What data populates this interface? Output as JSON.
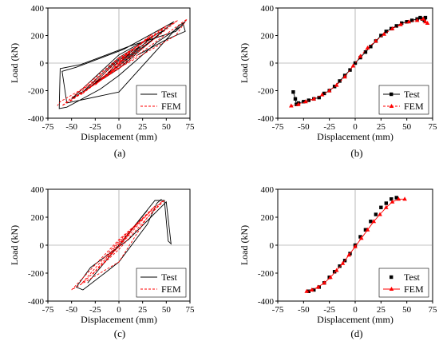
{
  "colors": {
    "test": "#000000",
    "fem": "#ff0000",
    "axis": "#000000"
  },
  "chart_data": [
    {
      "id": "a",
      "type": "line",
      "panel_label": "(a)",
      "xlabel": "Displacement (mm)",
      "ylabel": "Load (kN)",
      "xlim": [
        -75,
        75
      ],
      "ylim": [
        -400,
        400
      ],
      "xticks": [
        -75,
        -50,
        -25,
        0,
        25,
        50,
        75
      ],
      "yticks": [
        -400,
        -200,
        0,
        200,
        400
      ],
      "legend": "bottom-right",
      "series": [
        {
          "name": "Test",
          "style": "solid",
          "marker": "none",
          "x": [
            0,
            12,
            0,
            -12,
            0,
            22,
            0,
            -25,
            0,
            35,
            0,
            -38,
            0,
            48,
            0,
            -50,
            0,
            58,
            5,
            -45,
            -60,
            -55,
            0,
            63,
            70,
            60,
            10,
            -40,
            -62,
            -63,
            -55,
            -20,
            0,
            40,
            68,
            70,
            50,
            20
          ],
          "y": [
            0,
            70,
            20,
            -80,
            -10,
            120,
            30,
            -140,
            -20,
            190,
            40,
            -210,
            -20,
            240,
            60,
            -260,
            -40,
            300,
            100,
            -30,
            -60,
            -290,
            -210,
            270,
            300,
            230,
            120,
            -10,
            -40,
            -330,
            -320,
            -190,
            -90,
            150,
            280,
            230,
            170,
            60
          ]
        },
        {
          "name": "FEM",
          "style": "dashed",
          "marker": "none",
          "x": [
            0,
            12,
            0,
            -12,
            0,
            22,
            0,
            -25,
            0,
            35,
            0,
            -40,
            0,
            50,
            0,
            -52,
            0,
            62,
            0,
            -60,
            0,
            72,
            60,
            -62,
            -65
          ],
          "y": [
            0,
            85,
            -5,
            -90,
            5,
            140,
            10,
            -160,
            -10,
            210,
            20,
            -230,
            -20,
            270,
            30,
            -280,
            -30,
            310,
            40,
            -310,
            -40,
            320,
            200,
            -280,
            -310
          ]
        }
      ]
    },
    {
      "id": "b",
      "type": "line",
      "panel_label": "(b)",
      "xlabel": "Displacement (mm)",
      "ylabel": "Load (kN)",
      "xlim": [
        -75,
        75
      ],
      "ylim": [
        -400,
        400
      ],
      "xticks": [
        -75,
        -50,
        -25,
        0,
        25,
        50,
        75
      ],
      "yticks": [
        -400,
        -200,
        0,
        200,
        400
      ],
      "legend": "bottom-right",
      "series": [
        {
          "name": "Test",
          "style": "solid",
          "marker": "square",
          "x": [
            -60,
            -58,
            -57,
            -55,
            -50,
            -45,
            -40,
            -35,
            -30,
            -25,
            -20,
            -15,
            -10,
            -5,
            0,
            5,
            10,
            15,
            20,
            25,
            30,
            35,
            40,
            45,
            50,
            55,
            60,
            63,
            65,
            67,
            68
          ],
          "y": [
            -210,
            -260,
            -300,
            -290,
            -280,
            -270,
            -260,
            -250,
            -220,
            -200,
            -170,
            -130,
            -90,
            -50,
            0,
            40,
            80,
            120,
            160,
            200,
            230,
            250,
            270,
            290,
            300,
            310,
            320,
            330,
            320,
            310,
            330
          ]
        },
        {
          "name": "FEM",
          "style": "dashed",
          "marker": "triangle",
          "x": [
            -62,
            -55,
            -48,
            -40,
            -32,
            -25,
            -18,
            -10,
            -2,
            5,
            12,
            20,
            28,
            36,
            44,
            52,
            60,
            66,
            68,
            70
          ],
          "y": [
            -310,
            -300,
            -280,
            -260,
            -230,
            -200,
            -160,
            -100,
            -20,
            50,
            110,
            160,
            210,
            250,
            280,
            300,
            310,
            320,
            300,
            290
          ]
        }
      ]
    },
    {
      "id": "c",
      "type": "line",
      "panel_label": "(c)",
      "xlabel": "Displacement (mm)",
      "ylabel": "Load (kN)",
      "xlim": [
        -75,
        75
      ],
      "ylim": [
        -400,
        400
      ],
      "xticks": [
        -75,
        -50,
        -25,
        0,
        25,
        50,
        75
      ],
      "yticks": [
        -400,
        -200,
        0,
        200,
        400
      ],
      "legend": "bottom-right",
      "series": [
        {
          "name": "Test",
          "style": "solid",
          "marker": "none",
          "x": [
            0,
            10,
            0,
            -10,
            0,
            20,
            0,
            -22,
            0,
            30,
            0,
            -33,
            0,
            38,
            48,
            52,
            55,
            50,
            10,
            -30,
            -45,
            -38,
            -15,
            0,
            30,
            40,
            45
          ],
          "y": [
            0,
            80,
            0,
            -80,
            0,
            160,
            0,
            -180,
            0,
            250,
            0,
            -270,
            0,
            320,
            320,
            30,
            10,
            310,
            40,
            -160,
            -300,
            -320,
            -200,
            -120,
            150,
            300,
            330
          ]
        },
        {
          "name": "FEM",
          "style": "dashed",
          "marker": "none",
          "x": [
            0,
            12,
            0,
            -14,
            0,
            25,
            0,
            -28,
            0,
            38,
            0,
            -40,
            0,
            45,
            0,
            -50,
            -45,
            0,
            30,
            48,
            45
          ],
          "y": [
            0,
            90,
            -10,
            -100,
            10,
            190,
            20,
            -210,
            -10,
            280,
            30,
            -280,
            -30,
            310,
            40,
            -320,
            -300,
            -120,
            200,
            320,
            310
          ]
        }
      ]
    },
    {
      "id": "d",
      "type": "line",
      "panel_label": "(d)",
      "xlabel": "Displacement (mm)",
      "ylabel": "Load (kN)",
      "xlim": [
        -75,
        75
      ],
      "ylim": [
        -400,
        400
      ],
      "xticks": [
        -75,
        -50,
        -25,
        0,
        25,
        50,
        75
      ],
      "yticks": [
        -400,
        -200,
        0,
        200,
        400
      ],
      "legend": "bottom-right",
      "series": [
        {
          "name": "Test",
          "style": "none",
          "marker": "square",
          "x": [
            -45,
            -40,
            -35,
            -30,
            -25,
            -20,
            -15,
            -10,
            -5,
            0,
            5,
            10,
            15,
            20,
            25,
            30,
            35,
            40
          ],
          "y": [
            -330,
            -320,
            -300,
            -270,
            -230,
            -190,
            -150,
            -110,
            -60,
            0,
            60,
            110,
            170,
            220,
            270,
            300,
            330,
            340
          ]
        },
        {
          "name": "FEM",
          "style": "solid",
          "marker": "triangle",
          "x": [
            -47,
            -42,
            -36,
            -30,
            -24,
            -18,
            -12,
            -6,
            0,
            6,
            12,
            18,
            24,
            30,
            36,
            42,
            48
          ],
          "y": [
            -330,
            -320,
            -300,
            -270,
            -230,
            -180,
            -130,
            -70,
            -10,
            50,
            110,
            170,
            220,
            270,
            310,
            330,
            330
          ]
        }
      ]
    }
  ]
}
